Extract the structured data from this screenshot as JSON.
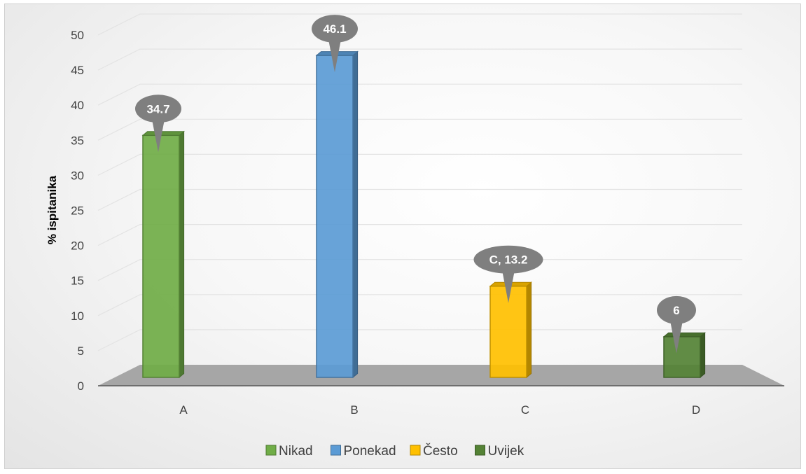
{
  "chart_data": {
    "type": "bar",
    "categories": [
      "A",
      "B",
      "C",
      "D"
    ],
    "series": [
      {
        "name": "Nikad",
        "values": [
          34.7,
          null,
          null,
          null
        ],
        "color": "#70AD47"
      },
      {
        "name": "Ponekad",
        "values": [
          null,
          46.1,
          null,
          null
        ],
        "color": "#5B9BD5"
      },
      {
        "name": "Često",
        "values": [
          null,
          null,
          13.2,
          null
        ],
        "color": "#FFC000"
      },
      {
        "name": "Uvijek",
        "values": [
          null,
          null,
          null,
          6
        ],
        "color": "#548235"
      }
    ],
    "data_labels": [
      "34.7",
      "46.1",
      "C, 13.2",
      "6"
    ],
    "title": "",
    "xlabel": "",
    "ylabel": "% ispitanika",
    "ylim": [
      0,
      50
    ],
    "yticks": [
      0,
      5,
      10,
      15,
      20,
      25,
      30,
      35,
      40,
      45,
      50
    ],
    "grid": true,
    "legend_position": "bottom",
    "style": "3d-column with callout data labels"
  }
}
